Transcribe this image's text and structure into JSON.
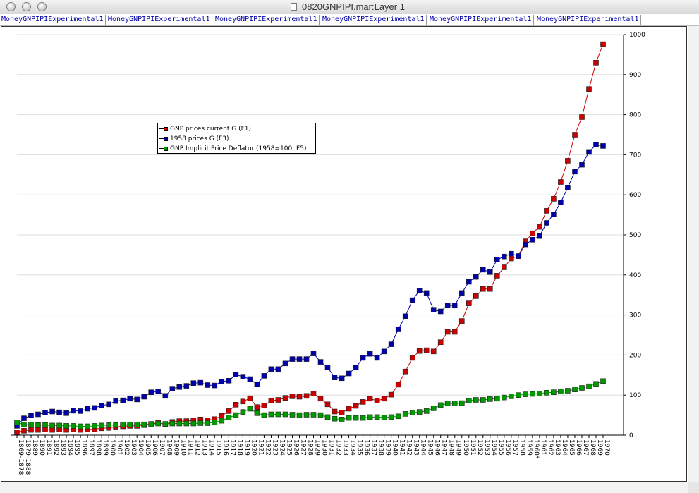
{
  "window": {
    "title": "0820GNPIPI.mar:Layer 1"
  },
  "tabs": [
    "MoneyGNPIPIExperimental1",
    "MoneyGNPIPIExperimental1",
    "MoneyGNPIPIExperimental1",
    "MoneyGNPIPIExperimental1",
    "MoneyGNPIPIExperimental1",
    "MoneyGNPIPIExperimental1"
  ],
  "legend": {
    "items": [
      "GNP prices current G (F1)",
      "1958 prices G (F3)",
      "GNP Implicit Price Deflator (1958=100; F5)"
    ]
  },
  "chart_data": {
    "type": "line",
    "title": "",
    "xlabel": "",
    "ylabel": "",
    "ylim": [
      0,
      1000
    ],
    "yticks": [
      0,
      100,
      200,
      300,
      400,
      500,
      600,
      700,
      800,
      900,
      1000
    ],
    "y_axis_side": "right",
    "grid": "horizontal",
    "legend_position": "upper-left",
    "categories": [
      "1869–1878",
      "1879–1888",
      "1889",
      "1890",
      "1891",
      "1892",
      "1893",
      "1894",
      "1895",
      "1896",
      "1897",
      "1898",
      "1899",
      "1900",
      "1901",
      "1902",
      "1903",
      "1904",
      "1905",
      "1906",
      "1907",
      "1908",
      "1909",
      "1910",
      "1911",
      "1912",
      "1913",
      "1914",
      "1915",
      "1916",
      "1917",
      "1918",
      "1919",
      "1920",
      "1921",
      "1922",
      "1923",
      "1924",
      "1925",
      "1926",
      "1927",
      "1928",
      "1929",
      "1930",
      "1931",
      "1932",
      "1933",
      "1934",
      "1935",
      "1936",
      "1937",
      "1938",
      "1939",
      "1940",
      "1941",
      "1942",
      "1943",
      "1944",
      "1945",
      "1946",
      "1947",
      "1948",
      "1949",
      "1950",
      "1951",
      "1952",
      "1953",
      "1954",
      "1955",
      "1956",
      "1957",
      "1958",
      "1959",
      "1960*",
      "1961",
      "1962",
      "1963",
      "1964",
      "1965",
      "1966",
      "1967",
      "1968",
      "1969",
      "1970"
    ],
    "series": [
      {
        "name": "GNP prices current G (F1)",
        "color": "#cc0000",
        "values": [
          7,
          11,
          13,
          13,
          14,
          13,
          14,
          13,
          14,
          13,
          14,
          15,
          17,
          18,
          21,
          22,
          23,
          23,
          25,
          28,
          31,
          27,
          33,
          35,
          35,
          37,
          39,
          37,
          40,
          48,
          60,
          76,
          84,
          92,
          70,
          74,
          86,
          88,
          93,
          97,
          96,
          98,
          104,
          91,
          77,
          59,
          56,
          66,
          73,
          83,
          91,
          86,
          91,
          101,
          126,
          159,
          193,
          210,
          212,
          209,
          232,
          258,
          258,
          285,
          329,
          347,
          365,
          365,
          398,
          419,
          441,
          447,
          484,
          504,
          520,
          560,
          590,
          632,
          685,
          750,
          794,
          864,
          930,
          976
        ]
      },
      {
        "name": "1958 prices G (F3)",
        "color": "#0000aa",
        "values": [
          23,
          42,
          49,
          52,
          56,
          59,
          57,
          55,
          61,
          60,
          66,
          68,
          74,
          77,
          85,
          87,
          91,
          89,
          96,
          107,
          109,
          98,
          116,
          120,
          123,
          130,
          131,
          125,
          124,
          134,
          136,
          151,
          146,
          140,
          127,
          148,
          165,
          165,
          179,
          190,
          190,
          190,
          204,
          183,
          169,
          144,
          142,
          154,
          169,
          193,
          203,
          193,
          209,
          227,
          264,
          297,
          337,
          361,
          355,
          313,
          309,
          324,
          324,
          355,
          383,
          395,
          413,
          407,
          438,
          446,
          453,
          447,
          476,
          488,
          497,
          530,
          551,
          581,
          618,
          658,
          675,
          707,
          725,
          722
        ]
      },
      {
        "name": "GNP Implicit Price Deflator (1958=100; F5)",
        "color": "#009900",
        "values": [
          32,
          26,
          26,
          25,
          25,
          24,
          24,
          23,
          23,
          22,
          22,
          23,
          24,
          25,
          25,
          26,
          26,
          26,
          27,
          27,
          29,
          28,
          29,
          29,
          29,
          29,
          30,
          30,
          32,
          36,
          44,
          50,
          58,
          66,
          55,
          50,
          52,
          52,
          52,
          51,
          50,
          51,
          51,
          50,
          45,
          41,
          39,
          43,
          43,
          43,
          45,
          45,
          44,
          45,
          47,
          53,
          56,
          58,
          60,
          67,
          75,
          79,
          79,
          80,
          86,
          88,
          88,
          90,
          91,
          94,
          97,
          100,
          102,
          103,
          104,
          106,
          107,
          109,
          111,
          114,
          118,
          122,
          128,
          135
        ]
      }
    ]
  }
}
